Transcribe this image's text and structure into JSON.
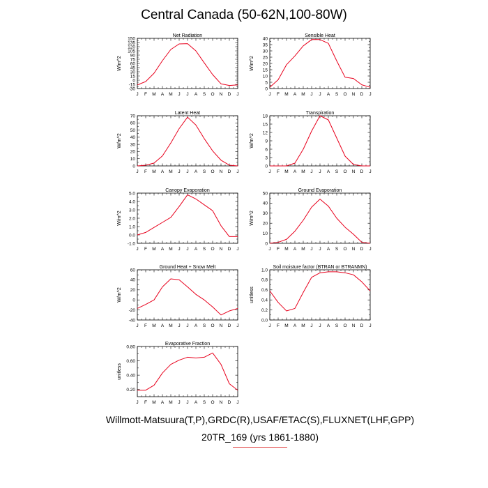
{
  "page": {
    "title": "Central Canada (50-62N,100-80W)",
    "footer_line1": "Willmott-Matsuura(T,P),GRDC(R),USAF/ETAC(S),FLUXNET(LHF,GPP)",
    "footer_line2": "20TR_169 (yrs 1861-1880)"
  },
  "style": {
    "line_color": "#e8001c"
  },
  "chart_data": [
    {
      "type": "line",
      "title": "Net Radiation",
      "ylabel": "W/m^2",
      "categories": [
        "J",
        "F",
        "M",
        "A",
        "M",
        "J",
        "J",
        "A",
        "S",
        "O",
        "N",
        "D",
        "J"
      ],
      "values": [
        -17,
        -5,
        25,
        70,
        110,
        130,
        131,
        105,
        62,
        20,
        -13,
        -19,
        -17
      ],
      "ylim": [
        -30,
        150
      ],
      "yticks": [
        "-30",
        "-15",
        "0",
        "15",
        "30",
        "45",
        "60",
        "75",
        "90",
        "105",
        "120",
        "135",
        "150"
      ]
    },
    {
      "type": "line",
      "title": "Sensible Heat",
      "ylabel": "W/m^2",
      "categories": [
        "J",
        "F",
        "M",
        "A",
        "M",
        "J",
        "J",
        "A",
        "S",
        "O",
        "N",
        "D",
        "J"
      ],
      "values": [
        1,
        7,
        19,
        26,
        34,
        39,
        39,
        36,
        22,
        9,
        8,
        3,
        1
      ],
      "ylim": [
        0,
        40
      ],
      "yticks": [
        "0",
        "5",
        "10",
        "15",
        "20",
        "25",
        "30",
        "35",
        "40"
      ]
    },
    {
      "type": "line",
      "title": "Latent Heat",
      "ylabel": "W/m^2",
      "categories": [
        "J",
        "F",
        "M",
        "A",
        "M",
        "J",
        "J",
        "A",
        "S",
        "O",
        "N",
        "D",
        "J"
      ],
      "values": [
        0,
        1,
        4,
        14,
        32,
        52,
        68,
        57,
        38,
        21,
        8,
        1,
        0
      ],
      "ylim": [
        0,
        70
      ],
      "yticks": [
        "0",
        "10",
        "20",
        "30",
        "40",
        "50",
        "60",
        "70"
      ]
    },
    {
      "type": "line",
      "title": "Transpiration",
      "ylabel": "W/m^2",
      "categories": [
        "J",
        "F",
        "M",
        "A",
        "M",
        "J",
        "J",
        "A",
        "S",
        "O",
        "N",
        "D",
        "J"
      ],
      "values": [
        0,
        0,
        0,
        1,
        6,
        12.5,
        18,
        16.5,
        10,
        3.5,
        0.5,
        0,
        0
      ],
      "ylim": [
        0,
        18
      ],
      "yticks": [
        "0",
        "3",
        "6",
        "9",
        "12",
        "15",
        "18"
      ]
    },
    {
      "type": "line",
      "title": "Canopy Evaporation",
      "ylabel": "W/m^2",
      "categories": [
        "J",
        "F",
        "M",
        "A",
        "M",
        "J",
        "J",
        "A",
        "S",
        "O",
        "N",
        "D",
        "J"
      ],
      "values": [
        0.0,
        0.3,
        0.9,
        1.5,
        2.1,
        3.4,
        4.8,
        4.3,
        3.6,
        2.9,
        1.1,
        -0.2,
        -0.2
      ],
      "ylim": [
        -1.0,
        5.0
      ],
      "yticks": [
        "-1.0",
        "0.0",
        "1.0",
        "2.0",
        "3.0",
        "4.0",
        "5.0"
      ]
    },
    {
      "type": "line",
      "title": "Ground Evaporation",
      "ylabel": "W/m^2",
      "categories": [
        "J",
        "F",
        "M",
        "A",
        "M",
        "J",
        "J",
        "A",
        "S",
        "O",
        "N",
        "D",
        "J"
      ],
      "values": [
        0,
        1,
        4,
        12,
        23,
        36,
        44,
        37,
        25,
        16,
        9,
        1,
        0
      ],
      "ylim": [
        0,
        50
      ],
      "yticks": [
        "0",
        "10",
        "20",
        "30",
        "40",
        "50"
      ]
    },
    {
      "type": "line",
      "title": "Ground Heat + Snow Melt",
      "ylabel": "W/m^2",
      "categories": [
        "J",
        "F",
        "M",
        "A",
        "M",
        "J",
        "J",
        "A",
        "S",
        "O",
        "N",
        "D",
        "J"
      ],
      "values": [
        -17,
        -9,
        0,
        26,
        42,
        40,
        26,
        11,
        0,
        -14,
        -30,
        -22,
        -17
      ],
      "ylim": [
        -40,
        60
      ],
      "yticks": [
        "-40",
        "-20",
        "0",
        "20",
        "40",
        "60"
      ]
    },
    {
      "type": "line",
      "title": "Soil moisture factor (BTRAN or BTRANMN)",
      "ylabel": "unitless",
      "categories": [
        "J",
        "F",
        "M",
        "A",
        "M",
        "J",
        "J",
        "A",
        "S",
        "O",
        "N",
        "D",
        "J"
      ],
      "values": [
        0.58,
        0.35,
        0.18,
        0.23,
        0.55,
        0.85,
        0.94,
        0.96,
        0.96,
        0.94,
        0.9,
        0.76,
        0.58
      ],
      "ylim": [
        0.0,
        1.0
      ],
      "yticks": [
        "0.0",
        "0.2",
        "0.4",
        "0.6",
        "0.8",
        "1.0"
      ]
    },
    {
      "type": "line",
      "title": "Evaporative Fraction",
      "ylabel": "unitless",
      "categories": [
        "J",
        "F",
        "M",
        "A",
        "M",
        "J",
        "J",
        "A",
        "S",
        "O",
        "N",
        "D",
        "J"
      ],
      "values": [
        0.19,
        0.19,
        0.26,
        0.43,
        0.55,
        0.61,
        0.65,
        0.64,
        0.65,
        0.71,
        0.55,
        0.28,
        0.19
      ],
      "ylim": [
        0.1,
        0.8
      ],
      "yticks": [
        "0.20",
        "0.40",
        "0.60",
        "0.80"
      ],
      "ytick_values": [
        0.2,
        0.4,
        0.6,
        0.8
      ]
    }
  ]
}
